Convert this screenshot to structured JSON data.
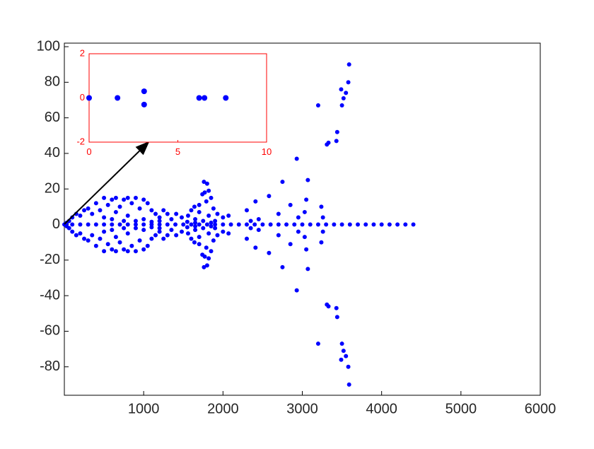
{
  "chart_data": [
    {
      "type": "scatter",
      "color": "#0000ff",
      "axis_color": "#000000",
      "xlim": [
        0,
        6000
      ],
      "ylim": [
        -96,
        102
      ],
      "xticks": [
        1000,
        2000,
        3000,
        4000,
        5000,
        6000
      ],
      "yticks": [
        -80,
        -60,
        -40,
        -20,
        0,
        20,
        40,
        60,
        80,
        100
      ],
      "x": [
        3590,
        3580,
        3550,
        3520,
        3490,
        3500,
        3440,
        3430,
        3330,
        3310,
        3200,
        2930,
        3070,
        3050,
        2750,
        2580,
        3240,
        3030,
        2850,
        2410,
        2950,
        3260,
        2300,
        2700,
        2450,
        2350,
        1760,
        1800,
        1820,
        1770,
        1740,
        1850,
        1790,
        1700,
        1640,
        1880,
        1600,
        1700,
        1930,
        1560,
        1820,
        1480,
        1650,
        2000,
        2070,
        1410,
        1350,
        1750,
        1900,
        1550,
        1650,
        1850,
        500,
        600,
        650,
        750,
        800,
        850,
        900,
        1000,
        1050,
        950,
        700,
        550,
        400,
        450,
        300,
        350,
        250,
        200,
        150,
        100,
        60,
        30,
        650,
        800,
        1100,
        1150,
        1200,
        1250,
        1300,
        1000,
        900,
        600,
        500,
        1100,
        750,
        1200,
        3590,
        3580,
        3550,
        3520,
        3490,
        3500,
        3440,
        3430,
        3330,
        3310,
        3200,
        2930,
        3070,
        3050,
        2750,
        2580,
        3240,
        3030,
        2850,
        2410,
        2950,
        3260,
        2300,
        2700,
        2450,
        2350,
        1760,
        1800,
        1820,
        1770,
        1740,
        1850,
        1790,
        1700,
        1640,
        1880,
        1600,
        1700,
        1930,
        1560,
        1820,
        1480,
        1650,
        2000,
        2070,
        1410,
        1350,
        1750,
        1900,
        1550,
        1650,
        1850,
        500,
        600,
        650,
        750,
        800,
        850,
        900,
        1000,
        1050,
        950,
        700,
        550,
        400,
        450,
        300,
        350,
        250,
        200,
        150,
        100,
        60,
        30,
        650,
        800,
        1100,
        1150,
        1200,
        1250,
        1300,
        1000,
        900,
        600,
        500,
        1100,
        750,
        1200,
        0,
        100,
        200,
        300,
        400,
        500,
        600,
        700,
        800,
        900,
        1000,
        1100,
        1200,
        1300,
        1400,
        1500,
        1600,
        1700,
        1800,
        1900,
        2000,
        2100,
        2200,
        2300,
        2400,
        2500,
        2600,
        2700,
        2800,
        2900,
        3000,
        3100,
        3200,
        3300,
        3400,
        3500,
        3600,
        3700,
        3800,
        3900,
        4000,
        4100,
        4200,
        4300,
        4400
      ],
      "values": [
        90,
        80,
        74,
        71,
        76,
        67,
        52,
        47,
        46,
        45,
        67,
        37,
        25,
        14,
        24,
        16,
        10,
        7,
        11,
        13,
        4,
        4,
        8,
        6,
        3,
        2,
        24,
        23,
        19,
        18,
        17,
        15,
        13,
        11,
        10,
        9,
        8,
        7,
        6,
        5,
        5,
        4,
        3,
        4,
        5,
        6,
        3,
        2,
        2,
        1.5,
        1,
        1,
        15,
        14,
        15,
        14,
        15,
        12,
        15,
        14,
        12,
        9,
        10,
        11,
        12,
        8,
        9,
        6,
        8,
        5,
        6,
        4,
        2,
        1,
        7,
        5,
        8,
        6,
        4,
        8,
        6,
        3,
        2,
        3,
        4,
        1.5,
        2,
        2,
        -90,
        -80,
        -74,
        -71,
        -76,
        -67,
        -52,
        -47,
        -46,
        -45,
        -67,
        -37,
        -25,
        -14,
        -24,
        -16,
        -10,
        -7,
        -11,
        -13,
        -4,
        -4,
        -8,
        -6,
        -3,
        -2,
        -24,
        -23,
        -19,
        -18,
        -17,
        -15,
        -13,
        -11,
        -10,
        -9,
        -8,
        -7,
        -6,
        -5,
        -5,
        -4,
        -3,
        -4,
        -5,
        -6,
        -3,
        -2,
        -2,
        -1.5,
        -1,
        -1,
        -15,
        -14,
        -15,
        -14,
        -15,
        -12,
        -15,
        -14,
        -12,
        -9,
        -10,
        -11,
        -12,
        -8,
        -9,
        -6,
        -8,
        -5,
        -6,
        -4,
        -2,
        -1,
        -7,
        -5,
        -8,
        -6,
        -4,
        -8,
        -6,
        -3,
        -2,
        -3,
        -4,
        -1.5,
        -2,
        -2,
        0,
        0,
        0,
        0,
        0,
        0,
        0,
        0,
        0,
        0,
        0,
        0,
        0,
        0,
        0,
        0,
        0,
        0,
        0,
        0,
        0,
        0,
        0,
        0,
        0,
        0,
        0,
        0,
        0,
        0,
        0,
        0,
        0,
        0,
        0,
        0,
        0,
        0,
        0,
        0,
        0,
        0,
        0,
        0,
        0
      ]
    },
    {
      "type": "scatter",
      "color": "#0000ff",
      "axis_color": "#ff0000",
      "xlim": [
        0,
        10
      ],
      "ylim": [
        -2,
        2
      ],
      "xticks": [
        0,
        5,
        10
      ],
      "yticks": [
        -2,
        0,
        2
      ],
      "x": [
        0,
        1.6,
        3.1,
        3.1,
        6.2,
        6.5,
        7.7
      ],
      "values": [
        0,
        0,
        0.3,
        -0.3,
        0,
        0,
        0
      ]
    }
  ]
}
